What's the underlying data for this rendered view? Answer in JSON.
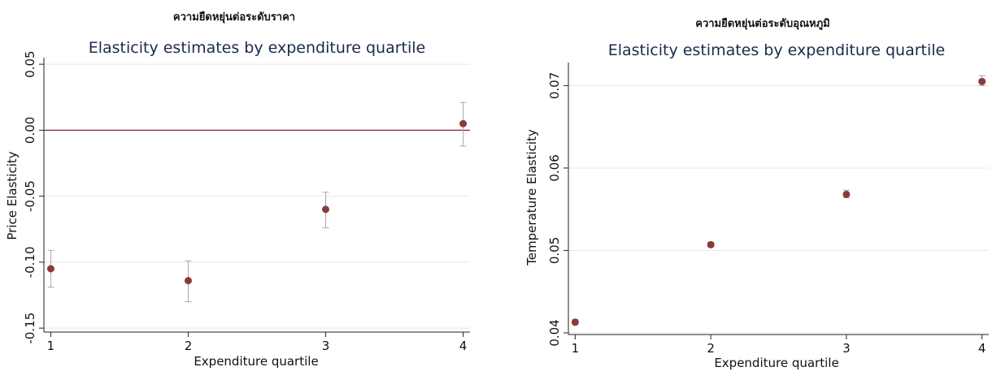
{
  "chart_data": [
    {
      "type": "scatter",
      "suptitle": "ความยืดหยุ่นต่อระดับราคา",
      "title": "Elasticity estimates by expenditure quartile",
      "xlabel": "Expenditure quartile",
      "ylabel": "Price Elasticity",
      "x": [
        1,
        2,
        3,
        4
      ],
      "xticks": [
        "1",
        "2",
        "3",
        "4"
      ],
      "y": [
        -0.105,
        -0.114,
        -0.06,
        0.005
      ],
      "ci_low": [
        -0.119,
        -0.13,
        -0.074,
        -0.012
      ],
      "ci_high": [
        -0.091,
        -0.099,
        -0.047,
        0.021
      ],
      "yticks": [
        "0.05",
        "0.00",
        "-0.05",
        "-0.10",
        "-0.15"
      ],
      "ylim": [
        -0.153,
        0.055
      ],
      "xlim": [
        0.95,
        4.05
      ],
      "reference_line_y": 0,
      "grid": true,
      "marker_color": "#8b3a3a"
    },
    {
      "type": "scatter",
      "suptitle": "ความยืดหยุ่นต่อระดับอุณหภูมิ",
      "title": "Elasticity estimates by expenditure quartile",
      "xlabel": "Expenditure quartile",
      "ylabel": "Temperature Elasticity",
      "x": [
        1,
        2,
        3,
        4
      ],
      "xticks": [
        "1",
        "2",
        "3",
        "4"
      ],
      "y": [
        0.0413,
        0.0507,
        0.0568,
        0.0705
      ],
      "ci_low": [
        0.041,
        0.0504,
        0.0564,
        0.07
      ],
      "ci_high": [
        0.0416,
        0.051,
        0.0573,
        0.0712
      ],
      "yticks": [
        "0.07",
        "0.06",
        "0.05",
        "0.04"
      ],
      "ylim": [
        0.0398,
        0.0728
      ],
      "xlim": [
        0.95,
        4.05
      ],
      "grid": true,
      "marker_color": "#8b3a3a"
    }
  ]
}
